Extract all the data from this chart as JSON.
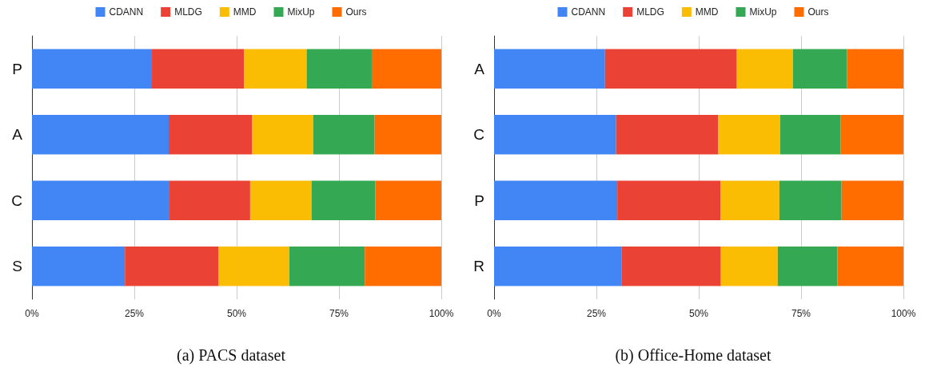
{
  "chart_data": [
    {
      "type": "bar",
      "orientation": "horizontal",
      "stacked": true,
      "title": "(a) PACS dataset",
      "categories": [
        "P",
        "A",
        "C",
        "S"
      ],
      "legend": "top",
      "grid": "x",
      "xlim": [
        0,
        100
      ],
      "xticks": [
        {
          "value": 0,
          "label": "0%"
        },
        {
          "value": 25,
          "label": "25%"
        },
        {
          "value": 50,
          "label": "50%"
        },
        {
          "value": 75,
          "label": "75%"
        },
        {
          "value": 100,
          "label": "100%"
        }
      ],
      "series": [
        {
          "name": "CDANN",
          "color": "#4285f4",
          "values": [
            29.3,
            33.4,
            33.6,
            22.7
          ]
        },
        {
          "name": "MLDG",
          "color": "#ea4335",
          "values": [
            22.5,
            20.4,
            19.7,
            22.9
          ]
        },
        {
          "name": "MMD",
          "color": "#fbbc04",
          "values": [
            15.3,
            14.9,
            15.0,
            17.3
          ]
        },
        {
          "name": "MixUp",
          "color": "#34a853",
          "values": [
            15.9,
            15.0,
            15.6,
            18.4
          ]
        },
        {
          "name": "Ours",
          "color": "#ff6d01",
          "values": [
            17.0,
            16.3,
            16.1,
            18.7
          ]
        }
      ]
    },
    {
      "type": "bar",
      "orientation": "horizontal",
      "stacked": true,
      "title": "(b) Office-Home dataset",
      "categories": [
        "A",
        "C",
        "P",
        "R"
      ],
      "legend": "top",
      "grid": "x",
      "xlim": [
        0,
        100
      ],
      "xticks": [
        {
          "value": 0,
          "label": "0%"
        },
        {
          "value": 25,
          "label": "25%"
        },
        {
          "value": 50,
          "label": "50%"
        },
        {
          "value": 75,
          "label": "75%"
        },
        {
          "value": 100,
          "label": "100%"
        }
      ],
      "series": [
        {
          "name": "CDANN",
          "color": "#4285f4",
          "values": [
            27.1,
            29.8,
            30.1,
            31.1
          ]
        },
        {
          "name": "MLDG",
          "color": "#ea4335",
          "values": [
            32.2,
            25.0,
            25.2,
            24.3
          ]
        },
        {
          "name": "MMD",
          "color": "#fbbc04",
          "values": [
            13.7,
            15.1,
            14.4,
            13.9
          ]
        },
        {
          "name": "MixUp",
          "color": "#34a853",
          "values": [
            13.2,
            14.8,
            15.2,
            14.6
          ]
        },
        {
          "name": "Ours",
          "color": "#ff6d01",
          "values": [
            13.8,
            15.3,
            15.1,
            16.1
          ]
        }
      ]
    }
  ]
}
